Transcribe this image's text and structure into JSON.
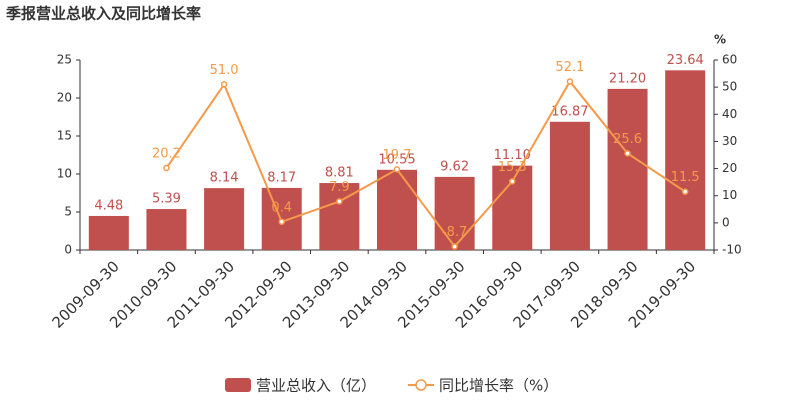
{
  "chart_data": {
    "type": "bar_line",
    "title": "季报营业总收入及同比增长率",
    "categories": [
      "2009-09-30",
      "2010-09-30",
      "2011-09-30",
      "2012-09-30",
      "2013-09-30",
      "2014-09-30",
      "2015-09-30",
      "2016-09-30",
      "2017-09-30",
      "2018-09-30",
      "2019-09-30"
    ],
    "series": [
      {
        "name": "营业总收入（亿）",
        "color": "#c0504d",
        "type": "bar",
        "values": [
          4.48,
          5.39,
          8.14,
          8.17,
          8.81,
          10.55,
          9.62,
          11.1,
          16.87,
          21.2,
          23.64
        ],
        "value_labels": [
          "4.48",
          "5.39",
          "8.14",
          "8.17",
          "8.81",
          "10.55",
          "9.62",
          "11.10",
          "16.87",
          "21.20",
          "23.64"
        ]
      },
      {
        "name": "同比增长率（%）",
        "color": "#f59a4a",
        "type": "line",
        "axis": "y2",
        "values": [
          null,
          20.2,
          51.0,
          0.4,
          7.9,
          19.7,
          -8.7,
          15.3,
          52.1,
          25.6,
          11.5
        ],
        "value_labels": [
          null,
          "20.2",
          "51.0",
          "0.4",
          "7.9",
          "19.7",
          "-8.7",
          "15.3",
          "52.1",
          "25.6",
          "11.5"
        ]
      }
    ],
    "ylim": [
      0,
      25
    ],
    "yticks": [
      0,
      5,
      10,
      15,
      20,
      25
    ],
    "y2lim": [
      -10,
      60
    ],
    "y2ticks": [
      -10,
      0,
      10,
      20,
      30,
      40,
      50,
      60
    ],
    "y2label": "%"
  }
}
